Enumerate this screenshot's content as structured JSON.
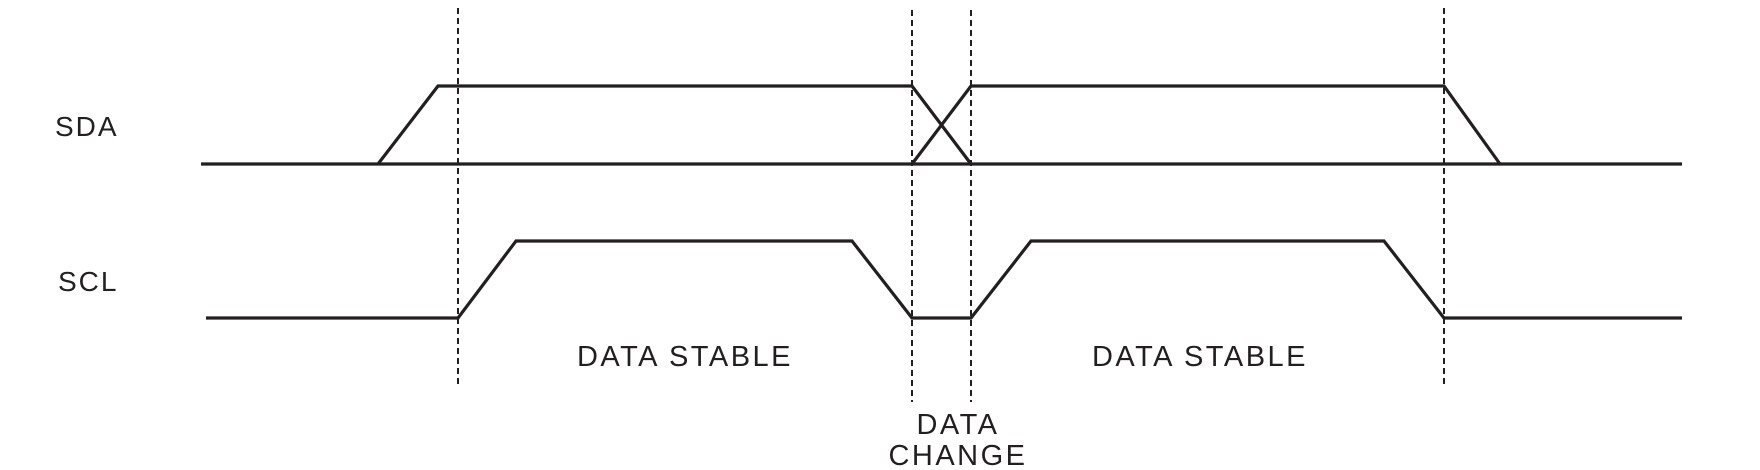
{
  "signals": {
    "sda": "SDA",
    "scl": "SCL"
  },
  "annotations": {
    "stable_first": "DATA STABLE",
    "stable_second": "DATA STABLE",
    "change_line1": "DATA",
    "change_line2": "CHANGE"
  },
  "colors": {
    "ink": "#231f20",
    "background": "#ffffff"
  }
}
